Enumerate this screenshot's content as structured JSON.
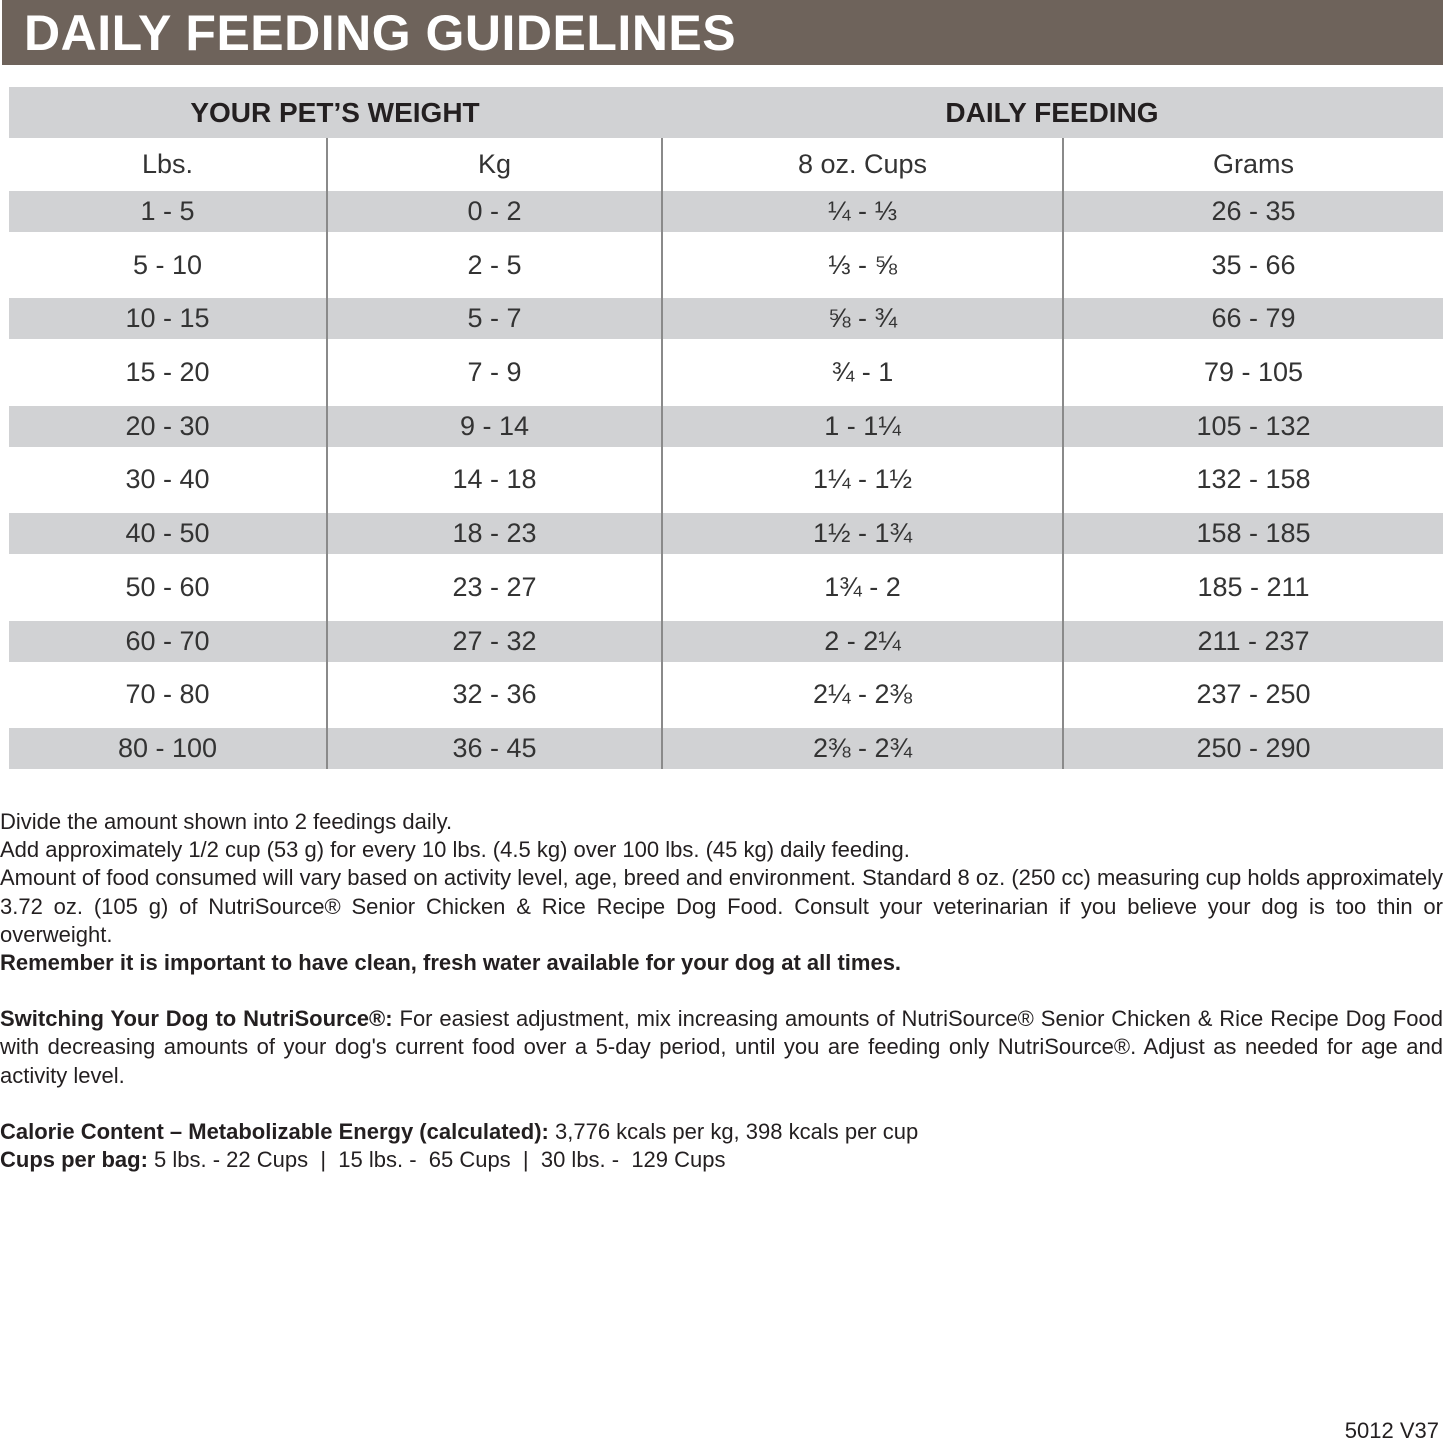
{
  "title": "DAILY FEEDING GUIDELINES",
  "table": {
    "group_headers": [
      "YOUR PET’S WEIGHT",
      "DAILY FEEDING"
    ],
    "columns": [
      "Lbs.",
      "Kg",
      "8 oz. Cups",
      "Grams"
    ],
    "rows": [
      [
        "1 - 5",
        "0 - 2",
        "¼ - ⅓",
        "26 - 35"
      ],
      [
        "5 - 10",
        "2 - 5",
        "⅓ - ⅝",
        "35 - 66"
      ],
      [
        "10 - 15",
        "5 - 7",
        "⅝ - ¾",
        "66 - 79"
      ],
      [
        "15 - 20",
        "7 - 9",
        "¾ - 1",
        "79 - 105"
      ],
      [
        "20 - 30",
        "9 - 14",
        "1 - 1¼",
        "105 - 132"
      ],
      [
        "30 - 40",
        "14 - 18",
        "1¼ - 1½",
        "132 - 158"
      ],
      [
        "40 - 50",
        "18 - 23",
        "1½ - 1¾",
        "158 - 185"
      ],
      [
        "50 - 60",
        "23 - 27",
        "1¾ - 2",
        "185 - 211"
      ],
      [
        "60 - 70",
        "27 - 32",
        "2 - 2¼",
        "211 - 237"
      ],
      [
        "70 - 80",
        "32 - 36",
        "2¼ - 2⅜",
        "237 - 250"
      ],
      [
        "80 - 100",
        "36 - 45",
        "2⅜ - 2¾",
        "250 - 290"
      ]
    ],
    "shade_color": "#d1d2d4"
  },
  "notes": {
    "line1": "Divide the amount shown into 2 feedings daily.",
    "line2": "Add approximately 1/2 cup (53 g) for every 10 lbs. (4.5 kg) over 100 lbs. (45 kg) daily feeding.",
    "line3": "Amount of food consumed will vary based on activity level, age, breed and environment. Standard 8 oz. (250 cc) measuring cup holds approximately 3.72 oz. (105 g) of NutriSource® Senior Chicken & Rice Recipe Dog Food. Consult your veterinarian if you believe your dog is too thin or overweight.",
    "water": "Remember it is important to have clean, fresh water available for your dog at all times.",
    "switch_label": "Switching Your Dog to NutriSource®:",
    "switch_text": " For easiest adjustment, mix increasing amounts of NutriSource® Senior Chicken & Rice Recipe Dog Food with decreasing amounts of your dog's current food over a 5-day period, until you are feeding only NutriSource®. Adjust as needed for age and activity level.",
    "calorie_label": "Calorie Content – Metabolizable Energy (calculated):",
    "calorie_text": " 3,776 kcals per kg, 398 kcals per cup",
    "cups_label": "Cups per bag:",
    "cups_text": " 5 lbs. - 22 Cups  |  15 lbs. -  65 Cups  |  30 lbs. -  129 Cups"
  },
  "footer_code": "5012 V37",
  "colors": {
    "title_bar": "#6e635b",
    "header_bg": "#d1d2d4"
  }
}
